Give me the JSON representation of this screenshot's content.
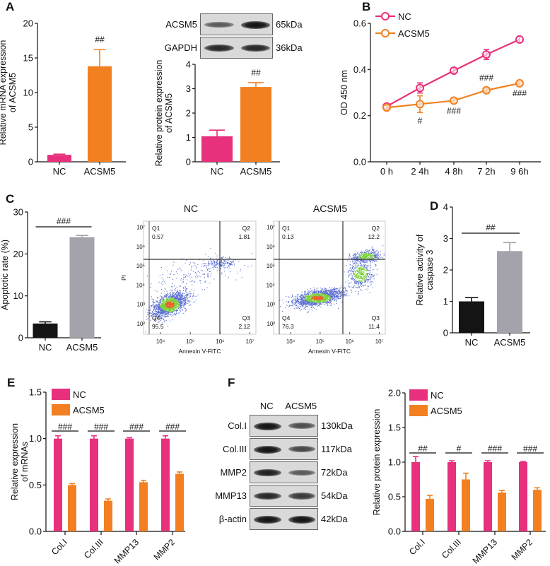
{
  "panels": {
    "A": "A",
    "B": "B",
    "C": "C",
    "D": "D",
    "E": "E",
    "F": "F"
  },
  "colors": {
    "nc": "#e8307c",
    "acsm5": "#f28020",
    "black": "#141414",
    "grey": "#a4a3ab"
  },
  "blot_A": {
    "rows": [
      {
        "label": "ACSM5",
        "kda": "65kDa"
      },
      {
        "label": "GAPDH",
        "kda": "36kDa"
      }
    ],
    "band_intensity": [
      [
        0.45,
        1.0
      ],
      [
        0.85,
        0.85
      ]
    ]
  },
  "blot_F": {
    "columns": [
      "NC",
      "ACSM5"
    ],
    "rows": [
      {
        "label": "Col.I",
        "kda": "130kDa"
      },
      {
        "label": "Col.III",
        "kda": "117kDa"
      },
      {
        "label": "MMP2",
        "kda": "72kDa"
      },
      {
        "label": "MMP13",
        "kda": "54kDa"
      },
      {
        "label": "β-actin",
        "kda": "42kDa"
      }
    ],
    "band_intensity": [
      [
        1.0,
        0.55
      ],
      [
        1.0,
        0.6
      ],
      [
        0.9,
        0.45
      ],
      [
        0.85,
        0.7
      ],
      [
        1.0,
        1.0
      ]
    ]
  },
  "chart_data": [
    {
      "id": "A-mrna",
      "type": "bar",
      "title": "",
      "ylabel_lines": [
        "Relative mRNA expression",
        "of ACSM5"
      ],
      "xlabel": "",
      "categories": [
        "NC",
        "ACSM5"
      ],
      "values": [
        1.0,
        13.8
      ],
      "errors": [
        0.1,
        2.4
      ],
      "bar_colors": [
        "#e8307c",
        "#f28020"
      ],
      "ylim": [
        0,
        20
      ],
      "ytick_labels": [
        "0",
        "5",
        "10",
        "15",
        "20"
      ],
      "significance": [
        {
          "label": "##",
          "over": 1,
          "line": false
        }
      ]
    },
    {
      "id": "A-protein",
      "type": "bar",
      "title": "",
      "ylabel_lines": [
        "Relative protein expression",
        "of ACSM5"
      ],
      "xlabel": "",
      "categories": [
        "NC",
        "ACSM5"
      ],
      "values": [
        1.05,
        3.07
      ],
      "errors": [
        0.25,
        0.18
      ],
      "bar_colors": [
        "#e8307c",
        "#f28020"
      ],
      "ylim": [
        0,
        4
      ],
      "ytick_labels": [
        "0",
        "1",
        "2",
        "3",
        "4"
      ],
      "significance": [
        {
          "label": "##",
          "over": 1,
          "line": false
        }
      ]
    },
    {
      "id": "B",
      "type": "line",
      "title": "",
      "ylabel_lines": [
        "OD 450 nm"
      ],
      "xlabel": "",
      "x": [
        "0 h",
        "2 4h",
        "4 8h",
        "7 2h",
        "9 6h"
      ],
      "series": [
        {
          "name": "NC",
          "color": "#e8307c",
          "values": [
            0.24,
            0.32,
            0.395,
            0.465,
            0.53
          ],
          "errors": [
            0.01,
            0.022,
            0.01,
            0.022,
            0.012
          ]
        },
        {
          "name": "ACSM5",
          "color": "#f28020",
          "values": [
            0.235,
            0.25,
            0.265,
            0.31,
            0.34
          ],
          "errors": [
            0.008,
            0.036,
            0.008,
            0.008,
            0.006
          ]
        }
      ],
      "ylim": [
        0,
        0.6
      ],
      "ytick_labels": [
        "0.0",
        "0.2",
        "0.4",
        "0.6"
      ],
      "legend": "top-left",
      "annotations": [
        {
          "x": 1,
          "label": "#",
          "pos": "below"
        },
        {
          "x": 2,
          "label": "###",
          "pos": "below"
        },
        {
          "x": 3,
          "label": "###",
          "pos": "above"
        },
        {
          "x": 4,
          "label": "###",
          "pos": "below"
        }
      ]
    },
    {
      "id": "C-apoptosis",
      "type": "bar",
      "title": "",
      "ylabel_lines": [
        "Apoptotic rate (%)"
      ],
      "xlabel": "",
      "categories": [
        "NC",
        "ACSM5"
      ],
      "values": [
        3.4,
        24.0
      ],
      "errors": [
        0.4,
        0.4
      ],
      "bar_colors": [
        "#141414",
        "#a4a3ab"
      ],
      "ylim": [
        0,
        30
      ],
      "ytick_labels": [
        "0",
        "10",
        "20",
        "30"
      ],
      "significance": [
        {
          "label": "###",
          "line": true
        }
      ]
    },
    {
      "id": "C-flow",
      "type": "scatter",
      "xlabel": "Annexin V-FITC",
      "ylabel": "PI",
      "x_tick_labels": [
        "10⁴",
        "10⁵",
        "10⁶",
        "10⁷"
      ],
      "y_tick_labels": [
        "10²",
        "10³",
        "10⁴",
        "10⁵",
        "10⁶",
        "10⁷"
      ],
      "plots": [
        {
          "title": "NC",
          "quadrants": [
            {
              "name": "Q1",
              "value": "0.57"
            },
            {
              "name": "Q2",
              "value": "1.81"
            },
            {
              "name": "Q3",
              "value": "2.12"
            },
            {
              "name": "Q4",
              "value": "95.5"
            }
          ]
        },
        {
          "title": "ACSM5",
          "quadrants": [
            {
              "name": "Q1",
              "value": "0.13"
            },
            {
              "name": "Q2",
              "value": "12.2"
            },
            {
              "name": "Q3",
              "value": "11.4"
            },
            {
              "name": "Q4",
              "value": "76.3"
            }
          ]
        }
      ]
    },
    {
      "id": "D",
      "type": "bar",
      "title": "",
      "ylabel_lines": [
        "Relative activity of",
        "caspase 3"
      ],
      "xlabel": "",
      "categories": [
        "NC",
        "ACSM5"
      ],
      "values": [
        1.0,
        2.6
      ],
      "errors": [
        0.12,
        0.27
      ],
      "bar_colors": [
        "#141414",
        "#a4a3ab"
      ],
      "ylim": [
        0,
        4
      ],
      "ytick_labels": [
        "0",
        "1",
        "2",
        "3",
        "4"
      ],
      "significance": [
        {
          "label": "##",
          "line": true
        }
      ]
    },
    {
      "id": "E",
      "type": "bar",
      "title": "",
      "ylabel_lines": [
        "Relative expression",
        "of mRNAs"
      ],
      "xlabel": "",
      "categories": [
        "Col.I",
        "Col.III",
        "MMP13",
        "MMP2"
      ],
      "series": [
        {
          "name": "NC",
          "color": "#e8307c",
          "values": [
            1.0,
            1.0,
            1.0,
            1.0
          ],
          "errors": [
            0.03,
            0.03,
            0.01,
            0.03
          ]
        },
        {
          "name": "ACSM5",
          "color": "#f28020",
          "values": [
            0.5,
            0.33,
            0.53,
            0.62
          ],
          "errors": [
            0.015,
            0.02,
            0.02,
            0.02
          ]
        }
      ],
      "ylim": [
        0,
        1.5
      ],
      "ytick_labels": [
        "0.0",
        "0.5",
        "1.0",
        "1.5"
      ],
      "legend": "top-left",
      "significance": [
        "###",
        "###",
        "###",
        "###"
      ]
    },
    {
      "id": "F",
      "type": "bar",
      "title": "",
      "ylabel_lines": [
        "Relative protein expression"
      ],
      "xlabel": "",
      "categories": [
        "Col.I",
        "Col.III",
        "MMP13",
        "MMP2"
      ],
      "series": [
        {
          "name": "NC",
          "color": "#e8307c",
          "values": [
            1.0,
            1.0,
            1.0,
            1.0
          ],
          "errors": [
            0.08,
            0.02,
            0.02,
            0.01
          ]
        },
        {
          "name": "ACSM5",
          "color": "#f28020",
          "values": [
            0.47,
            0.75,
            0.56,
            0.6
          ],
          "errors": [
            0.05,
            0.09,
            0.03,
            0.03
          ]
        }
      ],
      "ylim": [
        0,
        2.0
      ],
      "ytick_labels": [
        "0.0",
        "0.5",
        "1.0",
        "1.5",
        "2.0"
      ],
      "legend": "top-left",
      "significance": [
        "##",
        "#",
        "###",
        "###"
      ]
    }
  ]
}
